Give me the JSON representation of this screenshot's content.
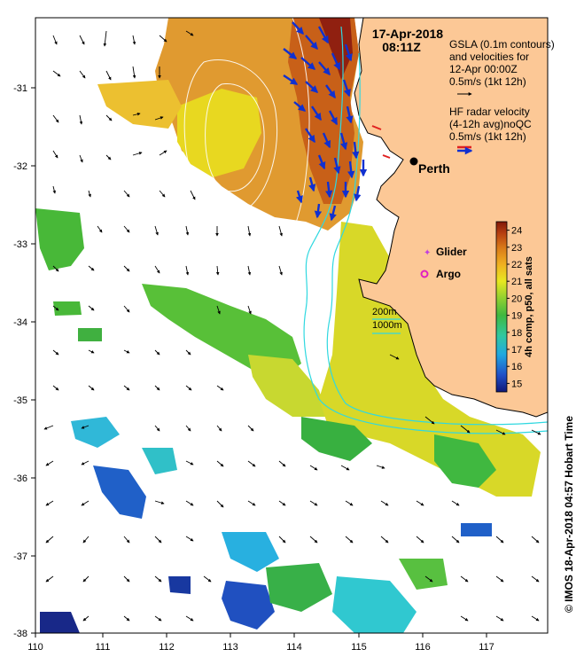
{
  "header": {
    "date": "17-Apr-2018",
    "time": "08:11Z"
  },
  "legend": {
    "gsla_lines": [
      "GSLA (0.1m contours)",
      "and velocities for",
      "12-Apr 00:00Z",
      "0.5m/s (1kt 12h)"
    ],
    "radar_lines": [
      "HF radar velocity",
      "(4-12h avg)noQC",
      "0.5m/s (1kt 12h)"
    ],
    "glider_label": "Glider",
    "argo_label": "Argo",
    "isobath_200": "200m",
    "isobath_1000": "1000m",
    "place_name": "Perth"
  },
  "colorbar": {
    "label": "4h comp, p50, all sats",
    "ticks": [
      "24",
      "23",
      "22",
      "21",
      "20",
      "19",
      "18",
      "17",
      "16",
      "15"
    ],
    "min": 14.5,
    "max": 24.5
  },
  "axes": {
    "x_ticks": [
      "110",
      "111",
      "112",
      "113",
      "114",
      "115",
      "116",
      "117"
    ],
    "y_ticks": [
      "-31",
      "-32",
      "-33",
      "-34",
      "-35",
      "-36",
      "-37",
      "-38"
    ],
    "xlim": [
      110,
      117.9
    ],
    "ylim": [
      -38,
      -30.15
    ]
  },
  "footer": {
    "credit": "© IMOS 18-Apr-2018 04:57 Hobart Time"
  },
  "colors": {
    "land": "#fcc896",
    "radar_arrow": "#1030d0",
    "isobath": "#30d8e0",
    "glider": "#c040e0",
    "argo": "#e020c0"
  }
}
